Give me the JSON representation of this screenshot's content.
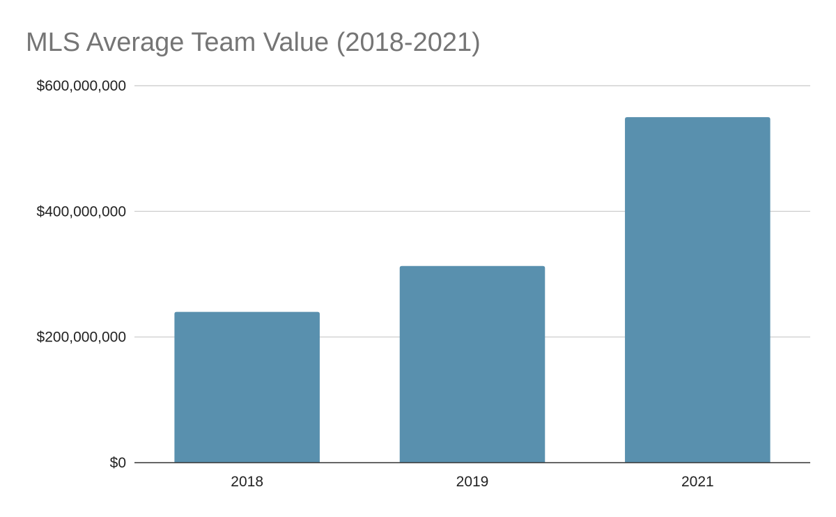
{
  "chart_data": {
    "type": "bar",
    "title": "MLS Average Team Value (2018-2021)",
    "xlabel": "",
    "ylabel": "",
    "categories": [
      "2018",
      "2019",
      "2021"
    ],
    "values": [
      240000000,
      313000000,
      550000000
    ],
    "ylim": [
      0,
      600000000
    ],
    "yticks": [
      0,
      200000000,
      400000000,
      600000000
    ],
    "ytick_labels": [
      "$0",
      "$200,000,000",
      "$400,000,000",
      "$600,000,000"
    ],
    "grid": true,
    "legend": "none",
    "colors": {
      "bar": "#5990ae",
      "grid": "#c8c8c8",
      "axis": "#333333",
      "title": "#757575",
      "text": "#222222"
    }
  }
}
